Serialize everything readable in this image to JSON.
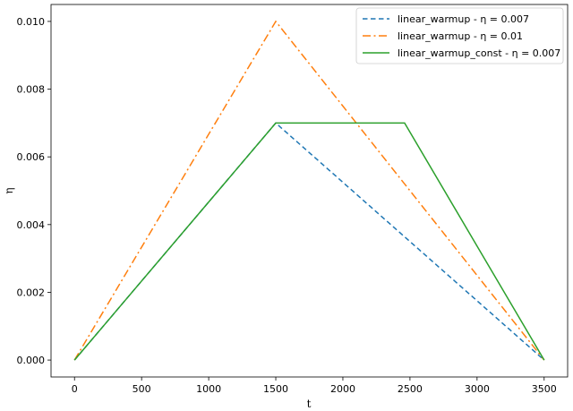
{
  "chart_data": {
    "type": "line",
    "title": "",
    "xlabel": "t",
    "ylabel": "η",
    "xlim": [
      -175,
      3675
    ],
    "ylim": [
      -0.0005,
      0.0105
    ],
    "xticks": [
      0,
      500,
      1000,
      1500,
      2000,
      2500,
      3000,
      3500
    ],
    "xtick_labels": [
      "0",
      "500",
      "1000",
      "1500",
      "2000",
      "2500",
      "3000",
      "3500"
    ],
    "yticks": [
      0.0,
      0.002,
      0.004,
      0.006,
      0.008,
      0.01
    ],
    "ytick_labels": [
      "0.000",
      "0.002",
      "0.004",
      "0.006",
      "0.008",
      "0.010"
    ],
    "grid": false,
    "legend": "top-right",
    "series": [
      {
        "name": "linear_warmup - η = 0.007",
        "color": "#1f77b4",
        "dash": "dashed",
        "x": [
          0,
          1500,
          3500
        ],
        "y": [
          0.0,
          0.007,
          0.0
        ]
      },
      {
        "name": "linear_warmup - η = 0.01",
        "color": "#ff7f0e",
        "dash": "dashdot",
        "x": [
          0,
          1500,
          3500
        ],
        "y": [
          0.0,
          0.01,
          0.0
        ]
      },
      {
        "name": "linear_warmup_const - η = 0.007",
        "color": "#2ca02c",
        "dash": "solid",
        "x": [
          0,
          1500,
          2460,
          3500
        ],
        "y": [
          0.0,
          0.007,
          0.007,
          0.0
        ]
      }
    ]
  }
}
